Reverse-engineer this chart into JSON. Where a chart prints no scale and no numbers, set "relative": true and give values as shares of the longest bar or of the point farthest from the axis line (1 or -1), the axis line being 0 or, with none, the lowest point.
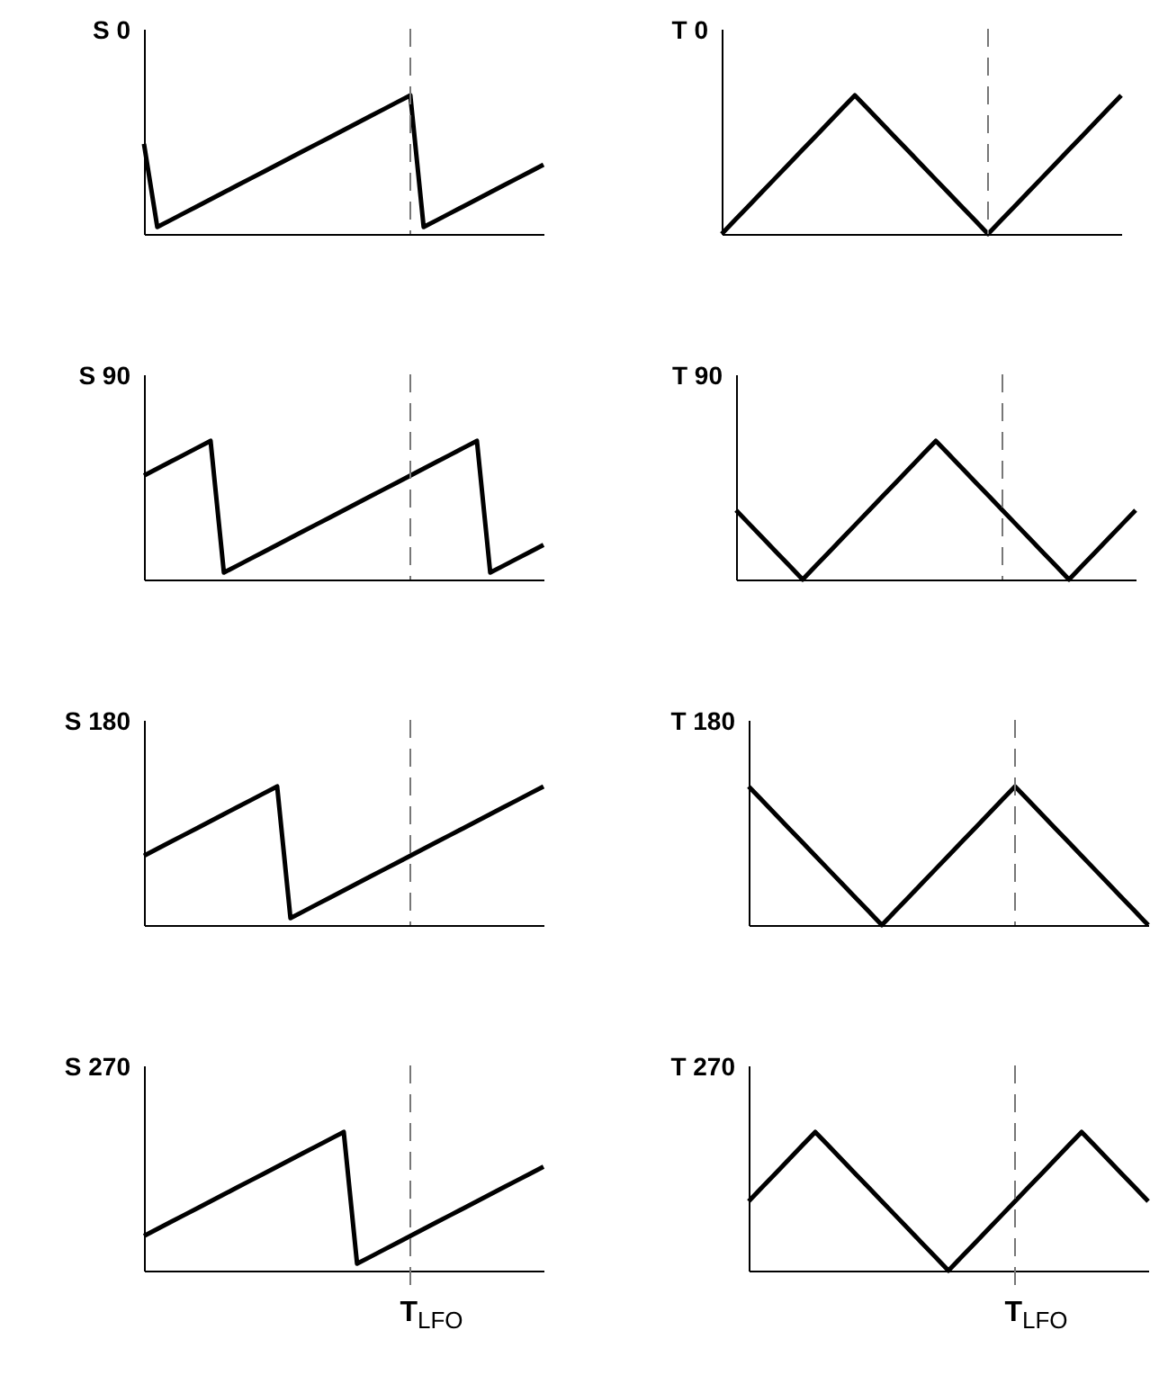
{
  "chart_data": [
    {
      "type": "line",
      "title": "S 0",
      "relative": true,
      "marker": "none",
      "line_style": "solid",
      "categories": [
        null,
        null,
        null,
        null,
        null,
        null,
        null,
        null,
        null,
        null,
        null,
        null,
        null,
        null,
        null,
        null,
        null,
        null,
        null,
        null,
        null,
        null,
        null,
        null,
        null,
        null,
        null,
        null,
        null,
        null,
        null
      ],
      "series": [
        {
          "color": "#000000",
          "values": [
            0.65,
            0.05,
            0.1,
            0.15,
            0.2,
            0.25,
            0.3,
            0.35,
            0.4,
            0.45,
            0.5,
            0.55,
            0.6,
            0.65,
            0.7,
            0.75,
            0.8,
            0.85,
            0.9,
            0.95,
            1,
            0.05,
            0.1,
            0.15,
            0.2,
            0.25,
            0.3,
            0.35,
            0.4,
            0.45,
            0.5
          ]
        }
      ]
    },
    {
      "type": "line",
      "title": "T 0",
      "relative": true,
      "marker": "none",
      "line_style": "solid",
      "categories": [
        null,
        null,
        null,
        null,
        null,
        null,
        null,
        null,
        null,
        null,
        null,
        null,
        null,
        null,
        null,
        null,
        null,
        null,
        null,
        null,
        null,
        null,
        null,
        null,
        null,
        null,
        null,
        null,
        null,
        null,
        null
      ],
      "series": [
        {
          "color": "#000000",
          "values": [
            0,
            0.1,
            0.2,
            0.3,
            0.4,
            0.5,
            0.6,
            0.7,
            0.8,
            0.9,
            1,
            0.9,
            0.8,
            0.7,
            0.6,
            0.5,
            0.4,
            0.3,
            0.2,
            0.1,
            0,
            0.1,
            0.2,
            0.3,
            0.4,
            0.5,
            0.6,
            0.7,
            0.8,
            0.9,
            1
          ]
        }
      ]
    },
    {
      "type": "line",
      "title": "S 90",
      "relative": true,
      "marker": "none",
      "line_style": "solid",
      "categories": [
        null,
        null,
        null,
        null,
        null,
        null,
        null,
        null,
        null,
        null,
        null,
        null,
        null,
        null,
        null,
        null,
        null,
        null,
        null,
        null,
        null,
        null,
        null,
        null,
        null,
        null,
        null,
        null,
        null,
        null,
        null
      ],
      "series": [
        {
          "color": "#000000",
          "values": [
            0.75,
            0.8,
            0.85,
            0.9,
            0.95,
            1,
            0.05,
            0.1,
            0.15,
            0.2,
            0.25,
            0.3,
            0.35,
            0.4,
            0.45,
            0.5,
            0.55,
            0.6,
            0.65,
            0.7,
            0.75,
            0.8,
            0.85,
            0.9,
            0.95,
            1,
            0.05,
            0.1,
            0.15,
            0.2,
            0.25
          ]
        }
      ]
    },
    {
      "type": "line",
      "title": "T 90",
      "relative": true,
      "marker": "none",
      "line_style": "solid",
      "categories": [
        null,
        null,
        null,
        null,
        null,
        null,
        null,
        null,
        null,
        null,
        null,
        null,
        null,
        null,
        null,
        null,
        null,
        null,
        null,
        null,
        null,
        null,
        null,
        null,
        null,
        null,
        null,
        null,
        null,
        null,
        null
      ],
      "series": [
        {
          "color": "#000000",
          "values": [
            0.5,
            0.4,
            0.3,
            0.2,
            0.1,
            0,
            0.1,
            0.2,
            0.3,
            0.4,
            0.5,
            0.6,
            0.7,
            0.8,
            0.9,
            1,
            0.9,
            0.8,
            0.7,
            0.6,
            0.5,
            0.4,
            0.3,
            0.2,
            0.1,
            0,
            0.1,
            0.2,
            0.3,
            0.4,
            0.5
          ]
        }
      ]
    },
    {
      "type": "line",
      "title": "S 180",
      "relative": true,
      "marker": "none",
      "line_style": "solid",
      "categories": [
        null,
        null,
        null,
        null,
        null,
        null,
        null,
        null,
        null,
        null,
        null,
        null,
        null,
        null,
        null,
        null,
        null,
        null,
        null,
        null,
        null,
        null,
        null,
        null,
        null,
        null,
        null,
        null,
        null,
        null,
        null
      ],
      "series": [
        {
          "color": "#000000",
          "values": [
            0.5,
            0.55,
            0.6,
            0.65,
            0.7,
            0.75,
            0.8,
            0.85,
            0.9,
            0.95,
            1,
            0.05,
            0.1,
            0.15,
            0.2,
            0.25,
            0.3,
            0.35,
            0.4,
            0.45,
            0.5,
            0.55,
            0.6,
            0.65,
            0.7,
            0.75,
            0.8,
            0.85,
            0.9,
            0.95,
            1
          ]
        }
      ]
    },
    {
      "type": "line",
      "title": "T 180",
      "relative": true,
      "marker": "none",
      "line_style": "solid",
      "categories": [
        null,
        null,
        null,
        null,
        null,
        null,
        null,
        null,
        null,
        null,
        null,
        null,
        null,
        null,
        null,
        null,
        null,
        null,
        null,
        null,
        null,
        null,
        null,
        null,
        null,
        null,
        null,
        null,
        null,
        null,
        null
      ],
      "series": [
        {
          "color": "#000000",
          "values": [
            1,
            0.9,
            0.8,
            0.7,
            0.6,
            0.5,
            0.4,
            0.3,
            0.2,
            0.1,
            0,
            0.1,
            0.2,
            0.3,
            0.4,
            0.5,
            0.6,
            0.7,
            0.8,
            0.9,
            1,
            0.9,
            0.8,
            0.7,
            0.6,
            0.5,
            0.4,
            0.3,
            0.2,
            0.1,
            0
          ]
        }
      ]
    },
    {
      "type": "line",
      "title": "S 270",
      "relative": true,
      "marker": "none",
      "line_style": "solid",
      "categories": [
        null,
        null,
        null,
        null,
        null,
        null,
        null,
        null,
        null,
        null,
        null,
        null,
        null,
        null,
        null,
        null,
        null,
        null,
        null,
        null,
        null,
        null,
        null,
        null,
        null,
        null,
        null,
        null,
        null,
        null,
        null
      ],
      "series": [
        {
          "color": "#000000",
          "values": [
            0.25,
            0.3,
            0.35,
            0.4,
            0.45,
            0.5,
            0.55,
            0.6,
            0.65,
            0.7,
            0.75,
            0.8,
            0.85,
            0.9,
            0.95,
            1,
            0.05,
            0.1,
            0.15,
            0.2,
            0.25,
            0.3,
            0.35,
            0.4,
            0.45,
            0.5,
            0.55,
            0.6,
            0.65,
            0.7,
            0.75
          ]
        }
      ],
      "annotations": [
        "T$_{LFO}$"
      ]
    },
    {
      "type": "line",
      "title": "T 270",
      "relative": true,
      "marker": "none",
      "line_style": "solid",
      "categories": [
        null,
        null,
        null,
        null,
        null,
        null,
        null,
        null,
        null,
        null,
        null,
        null,
        null,
        null,
        null,
        null,
        null,
        null,
        null,
        null,
        null,
        null,
        null,
        null,
        null,
        null,
        null,
        null,
        null,
        null,
        null
      ],
      "series": [
        {
          "color": "#000000",
          "values": [
            0.5,
            0.6,
            0.7,
            0.8,
            0.9,
            1,
            0.9,
            0.8,
            0.7,
            0.6,
            0.5,
            0.4,
            0.3,
            0.2,
            0.1,
            0,
            0.1,
            0.2,
            0.3,
            0.4,
            0.5,
            0.6,
            0.7,
            0.8,
            0.9,
            1,
            0.9,
            0.8,
            0.7,
            0.6,
            0.5
          ]
        }
      ],
      "annotations": [
        "T$_{LFO}$"
      ]
    }
  ]
}
